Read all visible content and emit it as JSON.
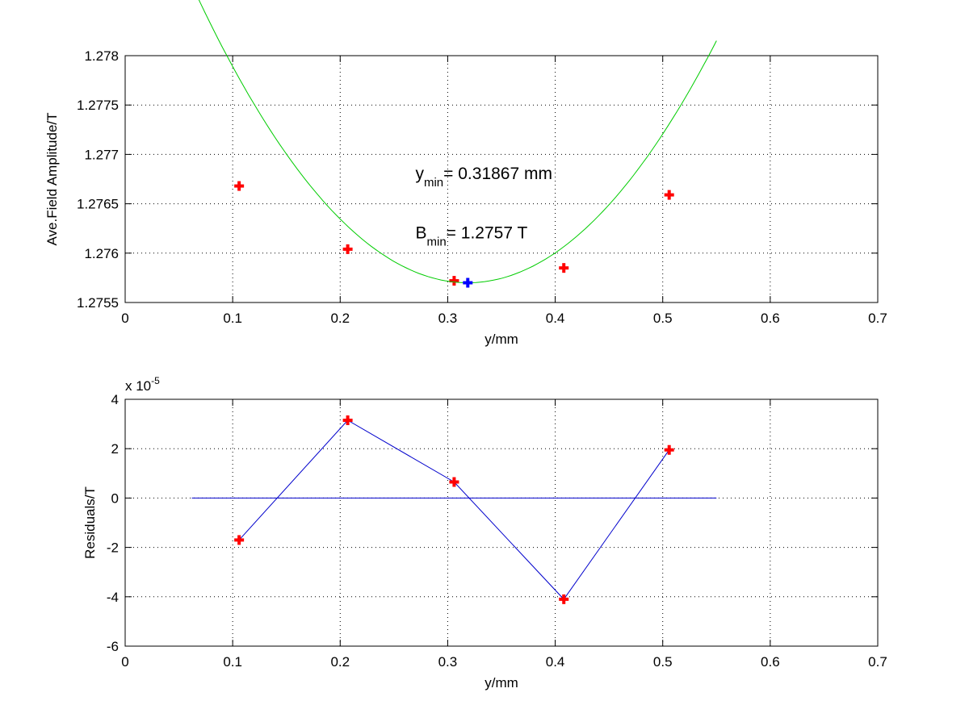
{
  "chart_data": [
    {
      "type": "scatter",
      "xlabel": "y/mm",
      "ylabel": "Ave.Field Amplitude/T",
      "xlim": [
        0,
        0.7
      ],
      "ylim": [
        1.2755,
        1.278
      ],
      "xticks": [
        0,
        0.1,
        0.2,
        0.3,
        0.4,
        0.5,
        0.6,
        0.7
      ],
      "xtick_labels": [
        "0",
        "0.1",
        "0.2",
        "0.3",
        "0.4",
        "0.5",
        "0.6",
        "0.7"
      ],
      "yticks": [
        1.2755,
        1.276,
        1.2765,
        1.277,
        1.2775,
        1.278
      ],
      "ytick_labels": [
        "1.2755",
        "1.276",
        "1.2765",
        "1.277",
        "1.2775",
        "1.278"
      ],
      "grid": true,
      "series": [
        {
          "kind": "points",
          "marker": "plus",
          "color": "#ff0000",
          "x": [
            0.106,
            0.207,
            0.306,
            0.408,
            0.506
          ],
          "y": [
            1.27668,
            1.27604,
            1.27572,
            1.27585,
            1.27659
          ]
        },
        {
          "kind": "line",
          "color": "#00cc00",
          "x": [
            0.062,
            0.55
          ],
          "quadratic": {
            "vertex_x": 0.31867,
            "vertex_y": 1.2757,
            "a": 0.0458
          }
        },
        {
          "kind": "points",
          "marker": "plus",
          "color": "#0000ff",
          "x": [
            0.31867
          ],
          "y": [
            1.2757
          ]
        }
      ],
      "annotations": [
        {
          "base": "y",
          "sub": "min",
          "text": "= 0.31867 mm",
          "x": 0.27,
          "y": 1.27675
        },
        {
          "base": "B",
          "sub": "min",
          "text": "= 1.2757 T",
          "x": 0.27,
          "y": 1.27615
        }
      ]
    },
    {
      "type": "line",
      "xlabel": "y/mm",
      "ylabel": "Residuals/T",
      "xlim": [
        0,
        0.7
      ],
      "ylim": [
        -6,
        4
      ],
      "exponent_label": {
        "base": "x 10",
        "exp": "-5"
      },
      "xticks": [
        0,
        0.1,
        0.2,
        0.3,
        0.4,
        0.5,
        0.6,
        0.7
      ],
      "xtick_labels": [
        "0",
        "0.1",
        "0.2",
        "0.3",
        "0.4",
        "0.5",
        "0.6",
        "0.7"
      ],
      "yticks": [
        -6,
        -4,
        -2,
        0,
        2,
        4
      ],
      "ytick_labels": [
        "-6",
        "-4",
        "-2",
        "0",
        "2",
        "4"
      ],
      "grid": true,
      "series": [
        {
          "kind": "line",
          "color": "#0000cc",
          "markers": "plus",
          "marker_color": "#ff0000",
          "x": [
            0.106,
            0.207,
            0.306,
            0.408,
            0.506
          ],
          "y": [
            -1.7,
            3.15,
            0.65,
            -4.1,
            1.95
          ]
        },
        {
          "kind": "line",
          "color": "#0000cc",
          "x": [
            0.062,
            0.55
          ],
          "y": [
            0,
            0
          ]
        }
      ]
    }
  ]
}
